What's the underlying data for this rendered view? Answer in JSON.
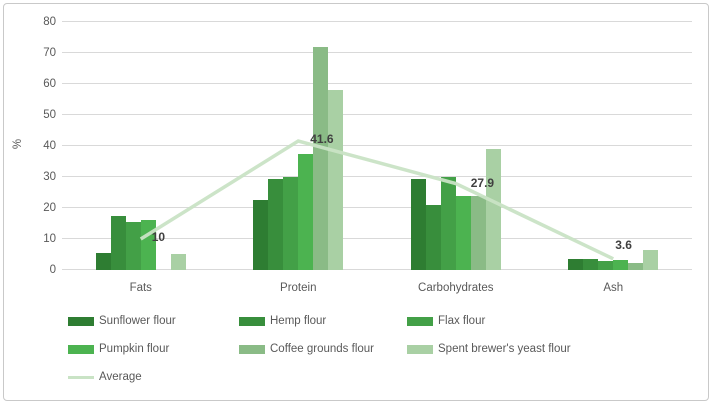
{
  "chart_data": {
    "type": "bar",
    "title": "",
    "ylabel": "%",
    "ylim": [
      0,
      80
    ],
    "yticks": [
      0,
      10,
      20,
      30,
      40,
      50,
      60,
      70,
      80
    ],
    "grid": true,
    "legend_position": "bottom",
    "categories": [
      "Fats",
      "Protein",
      "Carbohydrates",
      "Ash"
    ],
    "series": [
      {
        "name": "Sunflower flour",
        "color": "#2e7d32",
        "values": [
          5.6,
          22.5,
          29.5,
          3.4
        ]
      },
      {
        "name": "Hemp flour",
        "color": "#388e3c",
        "values": [
          17.5,
          29.5,
          21.0,
          3.4
        ]
      },
      {
        "name": "Flax flour",
        "color": "#43a047",
        "values": [
          15.5,
          30.0,
          30.0,
          3.0
        ]
      },
      {
        "name": "Pumpkin flour",
        "color": "#4cb350",
        "values": [
          16.2,
          37.5,
          24.0,
          3.2
        ]
      },
      {
        "name": "Coffee grounds flour",
        "color": "#8abb86",
        "values": [
          0.0,
          72.0,
          24.0,
          2.3
        ]
      },
      {
        "name": "Spent brewer's yeast flour",
        "color": "#a9d0a4",
        "values": [
          5.2,
          58.0,
          39.0,
          6.3
        ]
      }
    ],
    "line_series": {
      "name": "Average",
      "color": "#c9e3c5",
      "values": [
        10,
        41.6,
        27.9,
        3.6
      ],
      "labels": [
        "10",
        "41.6",
        "27.9",
        "3.6"
      ]
    }
  }
}
